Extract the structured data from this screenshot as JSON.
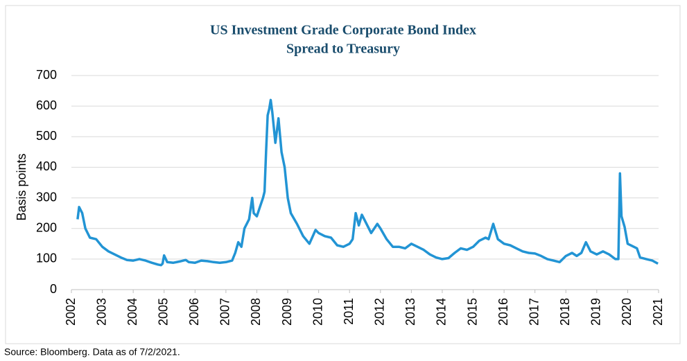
{
  "chart_data": {
    "type": "line",
    "title": "US  Investment Grade Corporate Bond Index",
    "subtitle": "Spread to Treasury",
    "y_label": "Basis points",
    "source": "Source: Bloomberg. Data as of 7/2/2021.",
    "xlim": [
      2002,
      2021
    ],
    "xticks": [
      2002,
      2003,
      2004,
      2005,
      2006,
      2007,
      2008,
      2009,
      2010,
      2011,
      2012,
      2013,
      2014,
      2015,
      2016,
      2017,
      2018,
      2019,
      2020,
      2021
    ],
    "ylim": [
      0,
      700
    ],
    "yticks": [
      0,
      100,
      200,
      300,
      400,
      500,
      600,
      700
    ],
    "grid": true,
    "series": [
      {
        "color": "#2294d4",
        "x": [
          2002.2,
          2002.25,
          2002.35,
          2002.45,
          2002.6,
          2002.8,
          2003.0,
          2003.2,
          2003.4,
          2003.6,
          2003.8,
          2004.0,
          2004.2,
          2004.4,
          2004.6,
          2004.8,
          2004.9,
          2004.95,
          2005.0,
          2005.1,
          2005.3,
          2005.5,
          2005.7,
          2005.8,
          2006.0,
          2006.2,
          2006.4,
          2006.6,
          2006.8,
          2007.0,
          2007.2,
          2007.3,
          2007.4,
          2007.5,
          2007.6,
          2007.75,
          2007.85,
          2007.9,
          2008.0,
          2008.1,
          2008.2,
          2008.25,
          2008.3,
          2008.35,
          2008.4,
          2008.45,
          2008.5,
          2008.6,
          2008.7,
          2008.8,
          2008.9,
          2009.0,
          2009.1,
          2009.3,
          2009.5,
          2009.7,
          2009.9,
          2010.0,
          2010.2,
          2010.4,
          2010.6,
          2010.8,
          2011.0,
          2011.1,
          2011.2,
          2011.3,
          2011.4,
          2011.5,
          2011.7,
          2011.9,
          2012.0,
          2012.2,
          2012.4,
          2012.6,
          2012.8,
          2013.0,
          2013.2,
          2013.4,
          2013.6,
          2013.8,
          2014.0,
          2014.2,
          2014.4,
          2014.6,
          2014.8,
          2015.0,
          2015.2,
          2015.4,
          2015.5,
          2015.65,
          2015.8,
          2016.0,
          2016.2,
          2016.4,
          2016.6,
          2016.8,
          2017.0,
          2017.2,
          2017.4,
          2017.6,
          2017.8,
          2018.0,
          2018.2,
          2018.35,
          2018.5,
          2018.65,
          2018.8,
          2019.0,
          2019.2,
          2019.4,
          2019.6,
          2019.7,
          2019.75,
          2019.8,
          2019.9,
          2020.0,
          2020.2,
          2020.3,
          2020.4,
          2020.6,
          2020.8,
          2020.98
        ],
        "values": [
          230,
          270,
          250,
          200,
          170,
          165,
          140,
          125,
          115,
          105,
          97,
          95,
          100,
          95,
          88,
          82,
          80,
          85,
          112,
          90,
          88,
          92,
          97,
          90,
          88,
          95,
          93,
          90,
          88,
          90,
          95,
          120,
          155,
          140,
          200,
          230,
          300,
          250,
          240,
          270,
          300,
          320,
          450,
          570,
          590,
          620,
          580,
          480,
          560,
          450,
          400,
          300,
          250,
          215,
          175,
          150,
          195,
          185,
          175,
          170,
          145,
          140,
          150,
          165,
          250,
          210,
          245,
          225,
          185,
          215,
          200,
          165,
          140,
          140,
          135,
          150,
          140,
          130,
          115,
          105,
          100,
          103,
          120,
          135,
          130,
          140,
          160,
          170,
          165,
          215,
          165,
          150,
          145,
          135,
          125,
          120,
          118,
          110,
          100,
          95,
          90,
          110,
          120,
          110,
          120,
          155,
          125,
          115,
          125,
          115,
          100,
          100,
          380,
          240,
          205,
          150,
          140,
          135,
          105,
          100,
          95,
          85
        ]
      }
    ]
  }
}
